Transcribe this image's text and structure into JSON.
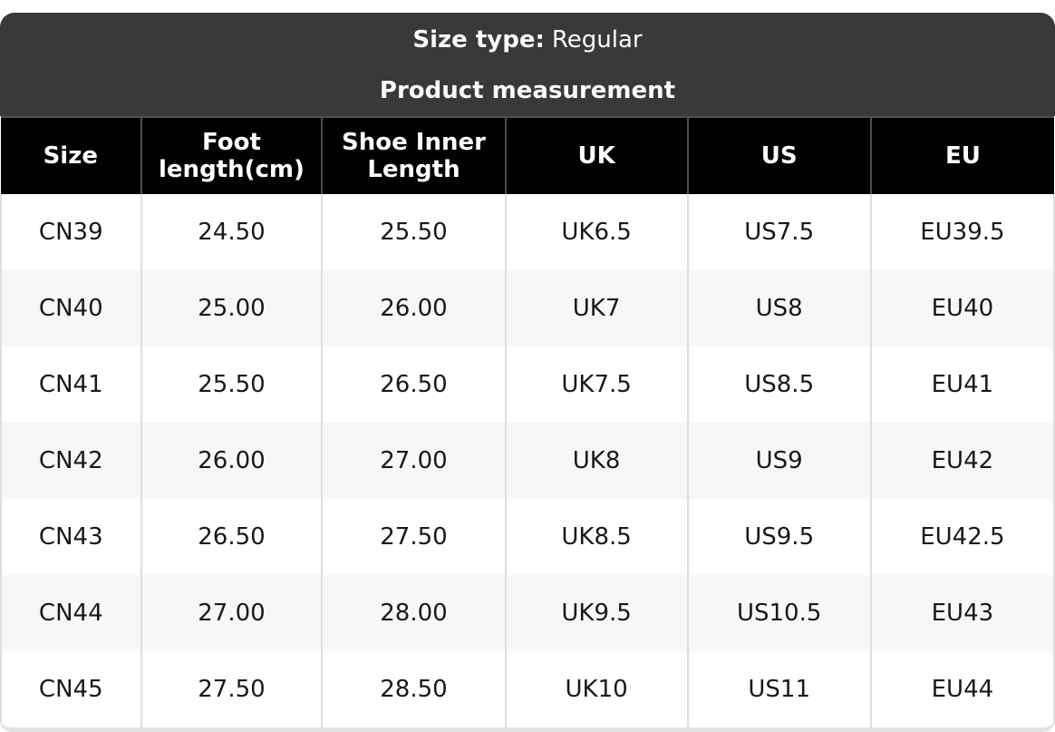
{
  "header": {
    "size_type_label": "Size type:",
    "size_type_value": "Regular",
    "subtitle": "Product measurement"
  },
  "table": {
    "columns": [
      "Size",
      "Foot length(cm)",
      "Shoe Inner Length",
      "UK",
      "US",
      "EU"
    ],
    "column_widths_pct": [
      13.3,
      17.2,
      17.4,
      17.3,
      17.4,
      17.4
    ],
    "rows": [
      [
        "CN39",
        "24.50",
        "25.50",
        "UK6.5",
        "US7.5",
        "EU39.5"
      ],
      [
        "CN40",
        "25.00",
        "26.00",
        "UK7",
        "US8",
        "EU40"
      ],
      [
        "CN41",
        "25.50",
        "26.50",
        "UK7.5",
        "US8.5",
        "EU41"
      ],
      [
        "CN42",
        "26.00",
        "27.00",
        "UK8",
        "US9",
        "EU42"
      ],
      [
        "CN43",
        "26.50",
        "27.50",
        "UK8.5",
        "US9.5",
        "EU42.5"
      ],
      [
        "CN44",
        "27.00",
        "28.00",
        "UK9.5",
        "US10.5",
        "EU43"
      ],
      [
        "CN45",
        "27.50",
        "28.50",
        "UK10",
        "US11",
        "EU44"
      ]
    ]
  },
  "colors": {
    "card_header_bg": "#39393b",
    "table_header_bg": "#010101",
    "table_header_divider": "#4e4e4e",
    "row_alt_bg": "#f7f7f8",
    "cell_divider": "#dedede",
    "bottom_border": "#e2e2e2",
    "title_text": "#fafafa",
    "cell_text": "#191919"
  }
}
